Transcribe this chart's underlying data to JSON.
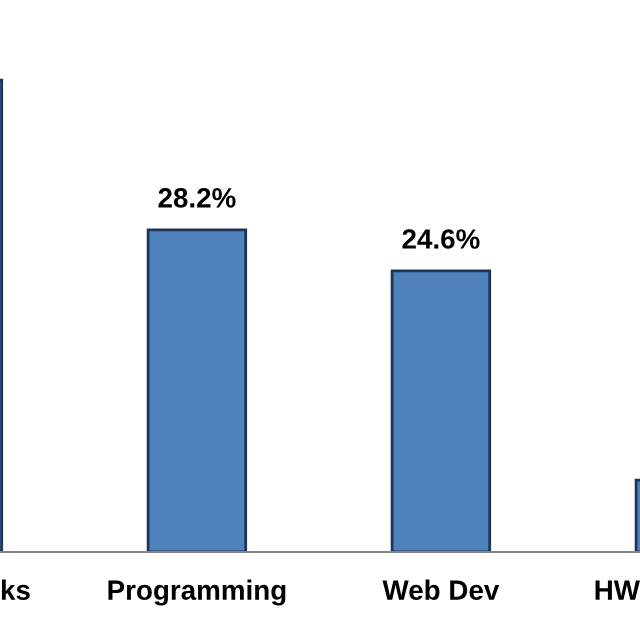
{
  "chart_data": {
    "type": "bar",
    "categories": [
      "ks",
      "Programming",
      "Web Dev",
      "HW"
    ],
    "values": [
      41.3,
      28.2,
      24.6,
      6.3
    ],
    "value_labels": [
      null,
      "28.2%",
      "24.6%",
      null
    ],
    "color": "#4f81bd"
  }
}
